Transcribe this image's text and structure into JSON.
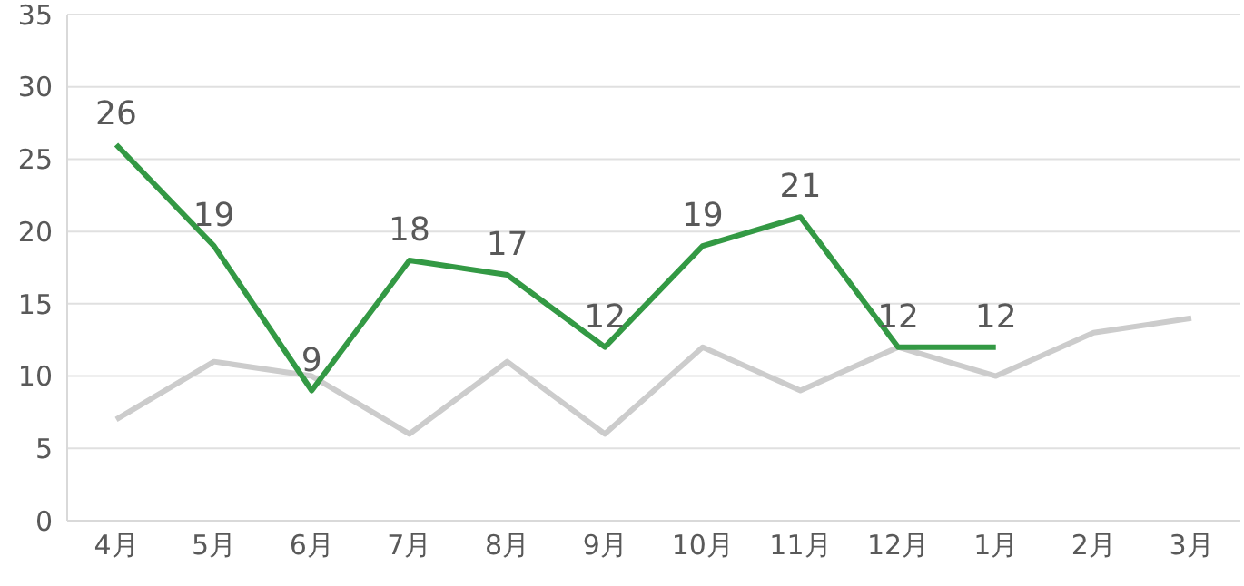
{
  "chart_data": {
    "type": "line",
    "categories": [
      "4月",
      "5月",
      "6月",
      "7月",
      "8月",
      "9月",
      "10月",
      "11月",
      "12月",
      "1月",
      "2月",
      "3月"
    ],
    "series": [
      {
        "color": "#cccccc",
        "values": [
          7,
          11,
          10,
          6,
          11,
          6,
          12,
          9,
          12,
          10,
          13,
          14
        ]
      },
      {
        "color": "#339944",
        "values": [
          26,
          19,
          9,
          18,
          17,
          12,
          19,
          21,
          12,
          12,
          null,
          null
        ],
        "value_labels": [
          "26",
          "19",
          "9",
          "18",
          "17",
          "12",
          "19",
          "21",
          "12",
          "12",
          null,
          null
        ]
      }
    ],
    "ylim": [
      0,
      35
    ],
    "yticks": [
      0,
      5,
      10,
      15,
      20,
      25,
      30,
      35
    ],
    "grid": "y"
  }
}
